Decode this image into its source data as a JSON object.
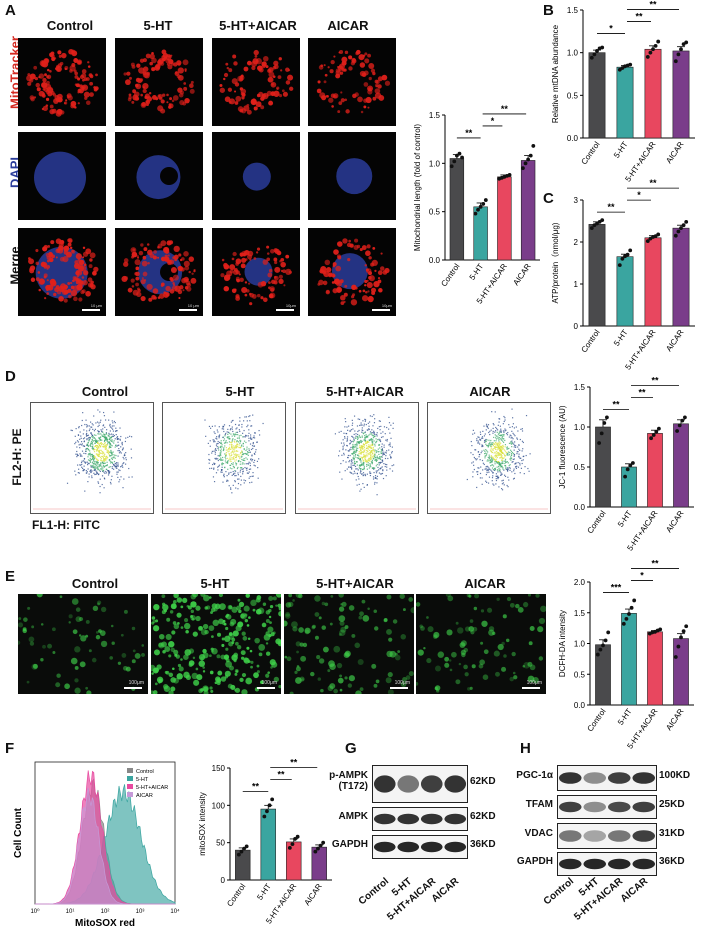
{
  "panels": {
    "A": {
      "label": "A",
      "columns": [
        "Control",
        "5-HT",
        "5-HT+AICAR",
        "AICAR"
      ],
      "rows": [
        "MitoTracker",
        "DAPI",
        "Merge"
      ],
      "scale_text": [
        "10 μm",
        "10 μm",
        "10μm",
        "10μm"
      ]
    },
    "B": {
      "label": "B"
    },
    "C": {
      "label": "C"
    },
    "D": {
      "label": "D",
      "columns": [
        "Control",
        "5-HT",
        "5-HT+AICAR",
        "AICAR"
      ],
      "ylabel": "FL2-H: PE",
      "xlabel": "FL1-H: FITC"
    },
    "E": {
      "label": "E",
      "columns": [
        "Control",
        "5-HT",
        "5-HT+AICAR",
        "AICAR"
      ],
      "scale_text": [
        "100μm",
        "100μm",
        "100μm",
        "100μm"
      ]
    },
    "F": {
      "label": "F",
      "hist_ylabel": "Cell Count",
      "hist_xlabel": "MitoSOX red",
      "legend": [
        "Control",
        "5-HT",
        "5-HT+AICAR",
        "AICAR"
      ],
      "hist_xticks": [
        "10⁰",
        "10¹",
        "10²",
        "10³",
        "10⁴"
      ]
    },
    "G": {
      "label": "G",
      "bands": [
        "p-AMPK\n(T172)",
        "AMPK",
        "GAPDH"
      ],
      "band_lines": [
        "p-AMPK",
        "(T172)"
      ],
      "sizes": [
        "62KD",
        "62KD",
        "36KD"
      ],
      "lanes": [
        "Control",
        "5-HT",
        "5-HT+AICAR",
        "AICAR"
      ]
    },
    "H": {
      "label": "H",
      "bands": [
        "PGC-1α",
        "TFAM",
        "VDAC",
        "GAPDH"
      ],
      "sizes": [
        "100KD",
        "25KD",
        "31KD",
        "36KD"
      ],
      "lanes": [
        "Control",
        "5-HT",
        "5-HT+AICAR",
        "AICAR"
      ]
    }
  },
  "colors": {
    "Control": "#4a4a4c",
    "5-HT": "#3aa5a0",
    "5-HT+AICAR": "#e8475f",
    "AICAR": "#7a3d8a",
    "mitotracker": "#e0201a",
    "dapi": "#2a3c9a",
    "dcfh": "#3fd24a"
  },
  "chart_data": [
    {
      "id": "A-bar",
      "type": "bar",
      "categories": [
        "Control",
        "5-HT",
        "5-HT+AICAR",
        "AICAR"
      ],
      "values": [
        1.05,
        0.55,
        0.86,
        1.03
      ],
      "errors": [
        0.04,
        0.04,
        0.02,
        0.05
      ],
      "ylabel": "Mitochondrial length (fold of control)",
      "ylim": [
        0.0,
        1.5
      ],
      "yticks": [
        "0.0",
        "0.5",
        "1.0",
        "1.5"
      ],
      "significance": [
        {
          "from": 0,
          "to": 1,
          "text": "**"
        },
        {
          "from": 1,
          "to": 2,
          "text": "*"
        },
        {
          "from": 1,
          "to": 3,
          "text": "**"
        }
      ],
      "points": [
        [
          0.97,
          1.02,
          1.08,
          1.1,
          1.06
        ],
        [
          0.48,
          0.52,
          0.55,
          0.58,
          0.62
        ],
        [
          0.84,
          0.85,
          0.86,
          0.87,
          0.88
        ],
        [
          0.95,
          1.0,
          1.04,
          1.08,
          1.18
        ]
      ]
    },
    {
      "id": "B-bar",
      "type": "bar",
      "categories": [
        "Control",
        "5-HT",
        "5-HT+AICAR",
        "AICAR"
      ],
      "values": [
        1.0,
        0.83,
        1.04,
        1.02
      ],
      "errors": [
        0.03,
        0.02,
        0.04,
        0.05
      ],
      "ylabel": "Relative mtDNA abundance",
      "ylim": [
        0.0,
        1.5
      ],
      "yticks": [
        "0.0",
        "0.5",
        "1.0",
        "1.5"
      ],
      "significance": [
        {
          "from": 0,
          "to": 1,
          "text": "*"
        },
        {
          "from": 1,
          "to": 2,
          "text": "**"
        },
        {
          "from": 1,
          "to": 3,
          "text": "**"
        }
      ],
      "points": [
        [
          0.94,
          0.98,
          1.02,
          1.05,
          1.06
        ],
        [
          0.8,
          0.82,
          0.84,
          0.85,
          0.86
        ],
        [
          0.95,
          1.0,
          1.04,
          1.08,
          1.13
        ],
        [
          0.9,
          0.98,
          1.04,
          1.1,
          1.12
        ]
      ]
    },
    {
      "id": "C-bar",
      "type": "bar",
      "categories": [
        "Control",
        "5-HT",
        "5-HT+AICAR",
        "AICAR"
      ],
      "values": [
        2.42,
        1.65,
        2.1,
        2.33
      ],
      "errors": [
        0.06,
        0.06,
        0.05,
        0.07
      ],
      "ylabel": "ATP/protein（nmol/μg)",
      "ylim": [
        0,
        3
      ],
      "yticks": [
        "0",
        "1",
        "2",
        "3"
      ],
      "significance": [
        {
          "from": 0,
          "to": 1,
          "text": "**"
        },
        {
          "from": 1,
          "to": 2,
          "text": "*"
        },
        {
          "from": 1,
          "to": 3,
          "text": "**"
        }
      ],
      "points": [
        [
          2.33,
          2.4,
          2.44,
          2.48,
          2.52
        ],
        [
          1.45,
          1.6,
          1.66,
          1.7,
          1.8
        ],
        [
          2.02,
          2.08,
          2.12,
          2.14,
          2.18
        ],
        [
          2.15,
          2.25,
          2.33,
          2.4,
          2.48
        ]
      ]
    },
    {
      "id": "D-bar",
      "type": "bar",
      "categories": [
        "Control",
        "5-HT",
        "5-HT+AICAR",
        "AICAR"
      ],
      "values": [
        1.0,
        0.5,
        0.92,
        1.04
      ],
      "errors": [
        0.09,
        0.04,
        0.04,
        0.05
      ],
      "ylabel": "JC-1 fluorescence (AU)",
      "ylim": [
        0.0,
        1.5
      ],
      "yticks": [
        "0.0",
        "0.5",
        "1.0",
        "1.5"
      ],
      "significance": [
        {
          "from": 0,
          "to": 1,
          "text": "**"
        },
        {
          "from": 1,
          "to": 2,
          "text": "**"
        },
        {
          "from": 1,
          "to": 3,
          "text": "**"
        }
      ],
      "points": [
        [
          0.8,
          0.92,
          1.05,
          1.12
        ],
        [
          0.38,
          0.47,
          0.52,
          0.55
        ],
        [
          0.86,
          0.9,
          0.94,
          0.98
        ],
        [
          0.95,
          1.02,
          1.08,
          1.12
        ]
      ]
    },
    {
      "id": "E-bar",
      "type": "bar",
      "categories": [
        "Control",
        "5-HT",
        "5-HT+AICAR",
        "AICAR"
      ],
      "values": [
        0.98,
        1.49,
        1.19,
        1.08
      ],
      "errors": [
        0.08,
        0.07,
        0.02,
        0.08
      ],
      "ylabel": "DCFH-DA intensity",
      "ylim": [
        0.0,
        2.0
      ],
      "yticks": [
        "0.0",
        "0.5",
        "1.0",
        "1.5",
        "2.0"
      ],
      "significance": [
        {
          "from": 0,
          "to": 1,
          "text": "***"
        },
        {
          "from": 1,
          "to": 2,
          "text": "*"
        },
        {
          "from": 1,
          "to": 3,
          "text": "**"
        }
      ],
      "points": [
        [
          0.82,
          0.9,
          0.97,
          1.05,
          1.18
        ],
        [
          1.32,
          1.4,
          1.48,
          1.58,
          1.7
        ],
        [
          1.16,
          1.18,
          1.19,
          1.21,
          1.23
        ],
        [
          0.78,
          0.95,
          1.1,
          1.2,
          1.28
        ]
      ]
    },
    {
      "id": "F-bar",
      "type": "bar",
      "categories": [
        "Control",
        "5-HT",
        "5-HT+AICAR",
        "AICAR"
      ],
      "values": [
        40,
        95,
        51,
        44
      ],
      "errors": [
        3,
        5,
        4,
        3
      ],
      "ylabel": "mitoSOX intensity",
      "ylim": [
        0,
        150
      ],
      "yticks": [
        "0",
        "50",
        "100",
        "150"
      ],
      "significance": [
        {
          "from": 0,
          "to": 1,
          "text": "**"
        },
        {
          "from": 1,
          "to": 2,
          "text": "**"
        },
        {
          "from": 1,
          "to": 3,
          "text": "**"
        }
      ],
      "points": [
        [
          34,
          38,
          42,
          45
        ],
        [
          85,
          92,
          100,
          108
        ],
        [
          43,
          48,
          55,
          58
        ],
        [
          38,
          42,
          46,
          50
        ]
      ]
    }
  ]
}
